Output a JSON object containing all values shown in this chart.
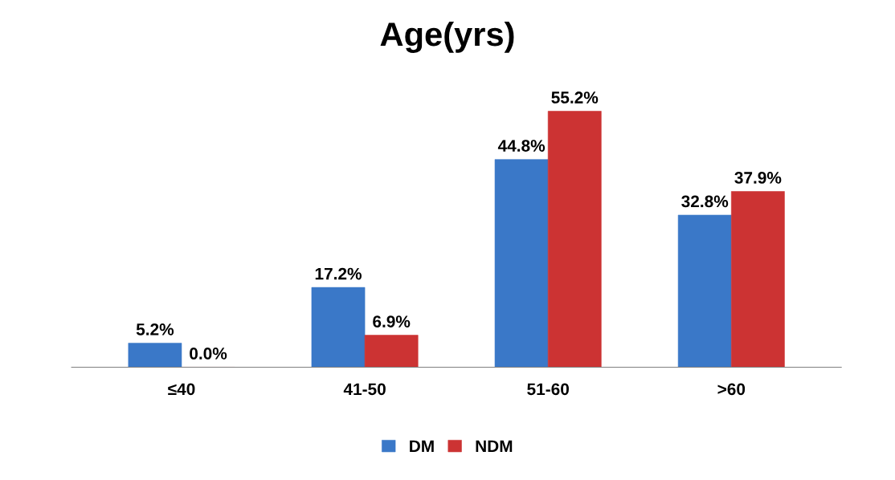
{
  "chart_data": {
    "type": "bar",
    "title": "Age(yrs)",
    "categories": [
      "≤40",
      "41-50",
      "51-60",
      ">60"
    ],
    "series": [
      {
        "name": "DM",
        "color": "#3a78c8",
        "values": [
          5.2,
          17.2,
          44.8,
          32.8
        ],
        "value_labels": [
          "5.2%",
          "17.2%",
          "44.8%",
          "32.8%"
        ]
      },
      {
        "name": "NDM",
        "color": "#cc3333",
        "values": [
          0.0,
          6.9,
          55.2,
          37.9
        ],
        "value_labels": [
          "0.0%",
          "6.9%",
          "55.2%",
          "37.9%"
        ]
      }
    ],
    "legend": "bottom",
    "grid": false
  }
}
